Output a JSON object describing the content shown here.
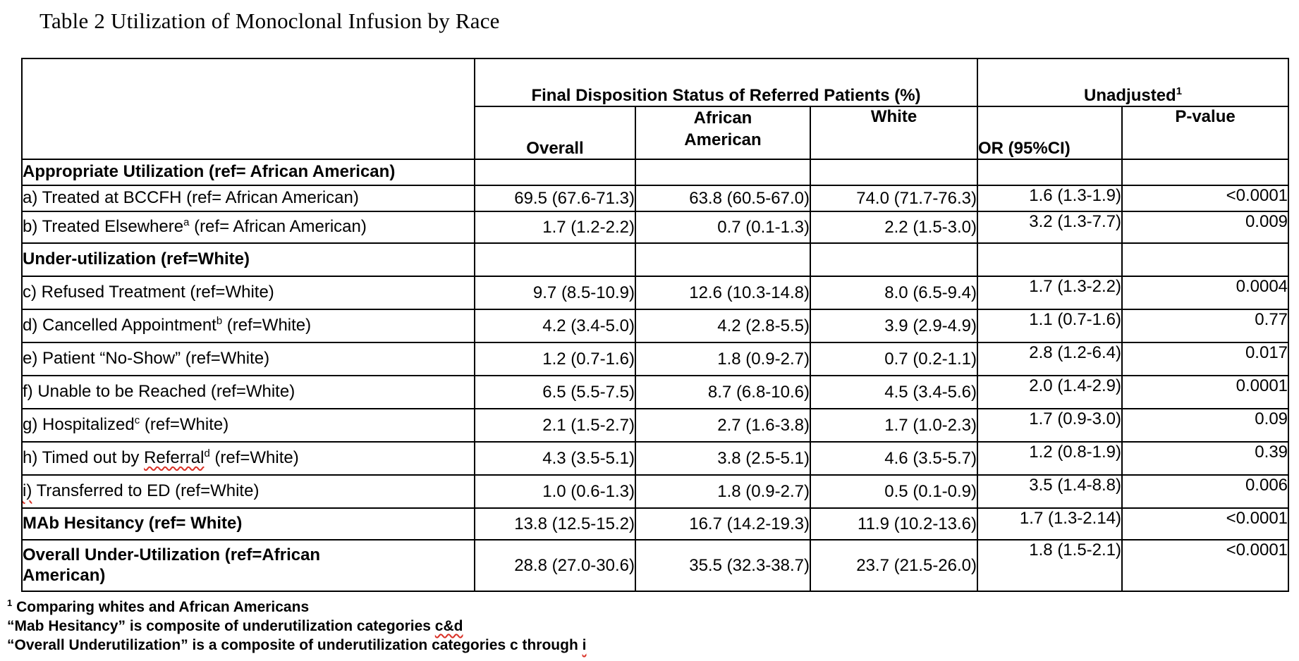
{
  "page": {
    "title": "Table 2 Utilization of Monoclonal Infusion by Race"
  },
  "colors": {
    "spellcheck_red": "#d93025"
  },
  "table": {
    "group_headers": {
      "disposition": "Final Disposition Status of Referred Patients (%)",
      "unadjusted": "Unadjusted",
      "unadjusted_superscript": "1"
    },
    "columns": {
      "overall": "Overall",
      "african_american": "African American",
      "white": "White",
      "or": "OR (95%CI)",
      "p_value": "P-value"
    },
    "rows": [
      {
        "id": "appropriate-utilization",
        "type": "section",
        "label": [
          {
            "text": "Appropriate Utilization (ref= African American)"
          }
        ],
        "values": [
          "",
          "",
          "",
          "",
          ""
        ]
      },
      {
        "id": "treated-at-bccfh",
        "type": "item",
        "label": [
          {
            "text": "a) Treated at BCCFH (ref= African American)"
          }
        ],
        "values": [
          "69.5 (67.6-71.3)",
          "63.8 (60.5-67.0)",
          "74.0 (71.7-76.3)",
          "1.6 (1.3-1.9)",
          "<0.0001"
        ]
      },
      {
        "id": "treated-elsewhere",
        "type": "item",
        "label": [
          {
            "text": "b) Treated Elsewhere"
          },
          {
            "sup": "a"
          },
          {
            "text": " (ref= African American)"
          }
        ],
        "values": [
          "1.7 (1.2-2.2)",
          "0.7 (0.1-1.3)",
          "2.2 (1.5-3.0)",
          "3.2 (1.3-7.7)",
          "0.009"
        ]
      },
      {
        "id": "under-utilization",
        "type": "section",
        "label": [
          {
            "text": "Under-utilization (ref=White)"
          }
        ],
        "values": [
          "",
          "",
          "",
          "",
          ""
        ]
      },
      {
        "id": "refused-treatment",
        "type": "item",
        "label": [
          {
            "text": "c) Refused Treatment (ref=White)"
          }
        ],
        "values": [
          "9.7 (8.5-10.9)",
          "12.6 (10.3-14.8)",
          "8.0 (6.5-9.4)",
          "1.7 (1.3-2.2)",
          "0.0004"
        ]
      },
      {
        "id": "cancelled-appointment",
        "type": "item",
        "label": [
          {
            "text": "d) Cancelled Appointment"
          },
          {
            "sup": "b"
          },
          {
            "text": " (ref=White)"
          }
        ],
        "values": [
          "4.2 (3.4-5.0)",
          "4.2 (2.8-5.5)",
          "3.9 (2.9-4.9)",
          "1.1 (0.7-1.6)",
          "0.77"
        ]
      },
      {
        "id": "patient-no-show",
        "type": "item",
        "label": [
          {
            "text": "e) Patient “No-Show” (ref=White)"
          }
        ],
        "values": [
          "1.2 (0.7-1.6)",
          "1.8 (0.9-2.7)",
          "0.7 (0.2-1.1)",
          "2.8 (1.2-6.4)",
          "0.017"
        ]
      },
      {
        "id": "unable-to-be-reached",
        "type": "item",
        "label": [
          {
            "text": "f) Unable to be Reached (ref=White)"
          }
        ],
        "values": [
          "6.5 (5.5-7.5)",
          "8.7 (6.8-10.6)",
          "4.5 (3.4-5.6)",
          "2.0 (1.4-2.9)",
          "0.0001"
        ]
      },
      {
        "id": "hospitalized",
        "type": "item",
        "label": [
          {
            "text": "g) Hospitalized"
          },
          {
            "sup": "c"
          },
          {
            "text": " (ref=White)"
          }
        ],
        "values": [
          "2.1 (1.5-2.7)",
          "2.7 (1.6-3.8)",
          "1.7 (1.0-2.3)",
          "1.7 (0.9-3.0)",
          "0.09"
        ]
      },
      {
        "id": "timed-out-by-referral",
        "type": "item",
        "label": [
          {
            "text": "h) Timed out by "
          },
          {
            "wavy": "Referral"
          },
          {
            "sup": "d"
          },
          {
            "text": " (ref=White)"
          }
        ],
        "values": [
          "4.3 (3.5-5.1)",
          "3.8 (2.5-5.1)",
          "4.6 (3.5-5.7)",
          "1.2 (0.8-1.9)",
          "0.39"
        ]
      },
      {
        "id": "transferred-to-ed",
        "type": "item",
        "label": [
          {
            "wavy": "i)"
          },
          {
            "text": " Transferred to ED (ref=White)"
          }
        ],
        "values": [
          "1.0 (0.6-1.3)",
          "1.8 (0.9-2.7)",
          "0.5 (0.1-0.9)",
          "3.5 (1.4-8.8)",
          "0.006"
        ]
      },
      {
        "id": "mab-hesitancy",
        "type": "summary",
        "label": [
          {
            "text": "MAb Hesitancy (ref= White)"
          }
        ],
        "values": [
          "13.8 (12.5-15.2)",
          "16.7 (14.2-19.3)",
          "11.9 (10.2-13.6)",
          "1.7 (1.3-2.14)",
          "<0.0001"
        ]
      },
      {
        "id": "overall-under-utilization",
        "type": "summary",
        "wrap": true,
        "label": [
          {
            "text": "Overall Under-Utilization (ref=African American)"
          }
        ],
        "values": [
          "28.8 (27.0-30.6)",
          "35.5 (32.3-38.7)",
          "23.7 (21.5-26.0)",
          "1.8 (1.5-2.1)",
          "<0.0001"
        ]
      }
    ]
  },
  "footnotes": [
    {
      "id": "footnote-1",
      "segments": [
        {
          "sup": "1"
        },
        {
          "text": " Comparing whites and African Americans"
        }
      ]
    },
    {
      "id": "footnote-2",
      "segments": [
        {
          "text": "“Mab Hesitancy” is composite of underutilization categories "
        },
        {
          "wavy": "c&d"
        }
      ]
    },
    {
      "id": "footnote-3",
      "segments": [
        {
          "text": "“Overall Underutilization” is a composite of underutilization categories c through "
        },
        {
          "wavy": "i"
        }
      ]
    }
  ]
}
